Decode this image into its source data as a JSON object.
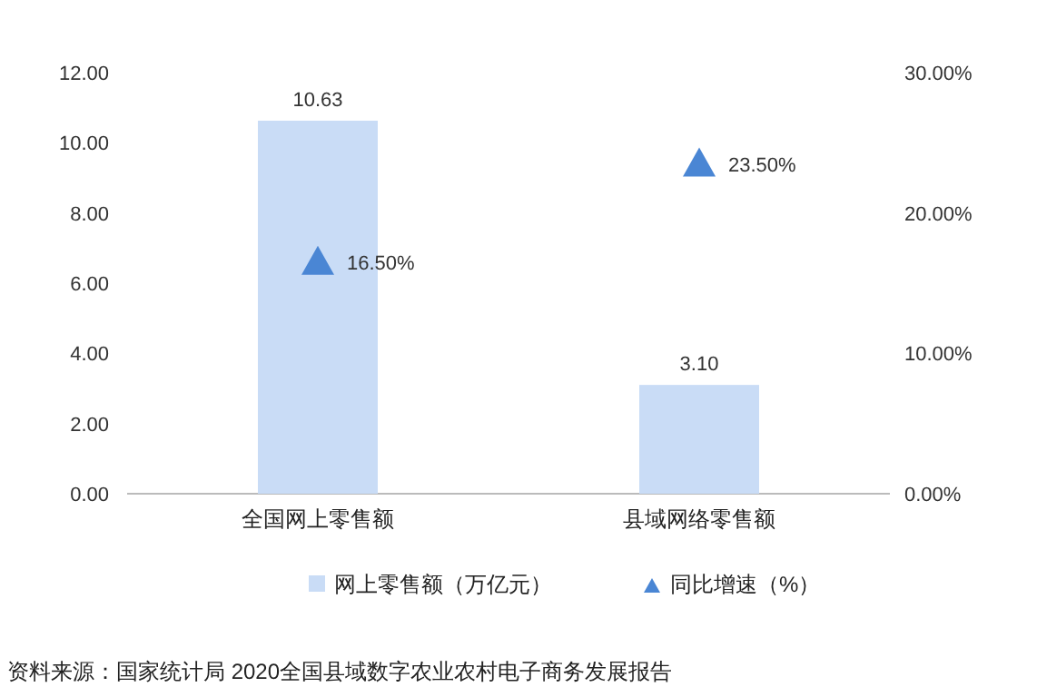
{
  "chart_data": {
    "type": "bar",
    "categories": [
      "全国网上零售额",
      "县域网络零售额"
    ],
    "series": [
      {
        "name": "网上零售额（万亿元）",
        "color": "#c9dcf6",
        "values": [
          10.63,
          3.1
        ],
        "value_labels": [
          "10.63",
          "3.10"
        ]
      },
      {
        "name": "同比增速（%）",
        "type": "scatter",
        "axis": "y2",
        "marker": "triangle",
        "color": "#4a86d4",
        "values": [
          16.5,
          23.5
        ],
        "value_labels": [
          "16.50%",
          "23.50%"
        ]
      }
    ],
    "ylim": [
      0,
      12
    ],
    "yticks": [
      {
        "value": 0,
        "label": "0.00"
      },
      {
        "value": 2,
        "label": "2.00"
      },
      {
        "value": 4,
        "label": "4.00"
      },
      {
        "value": 6,
        "label": "6.00"
      },
      {
        "value": 8,
        "label": "8.00"
      },
      {
        "value": 10,
        "label": "10.00"
      },
      {
        "value": 12,
        "label": "12.00"
      }
    ],
    "y2lim": [
      0,
      30
    ],
    "y2ticks": [
      {
        "value": 0,
        "label": "0.00%"
      },
      {
        "value": 10,
        "label": "10.00%"
      },
      {
        "value": 20,
        "label": "20.00%"
      },
      {
        "value": 30,
        "label": "30.00%"
      }
    ],
    "grid": false,
    "legend": "bottom",
    "annotations": [
      "资料来源：国家统计局 2020全国县域数字农业农村电子商务发展报告"
    ]
  }
}
